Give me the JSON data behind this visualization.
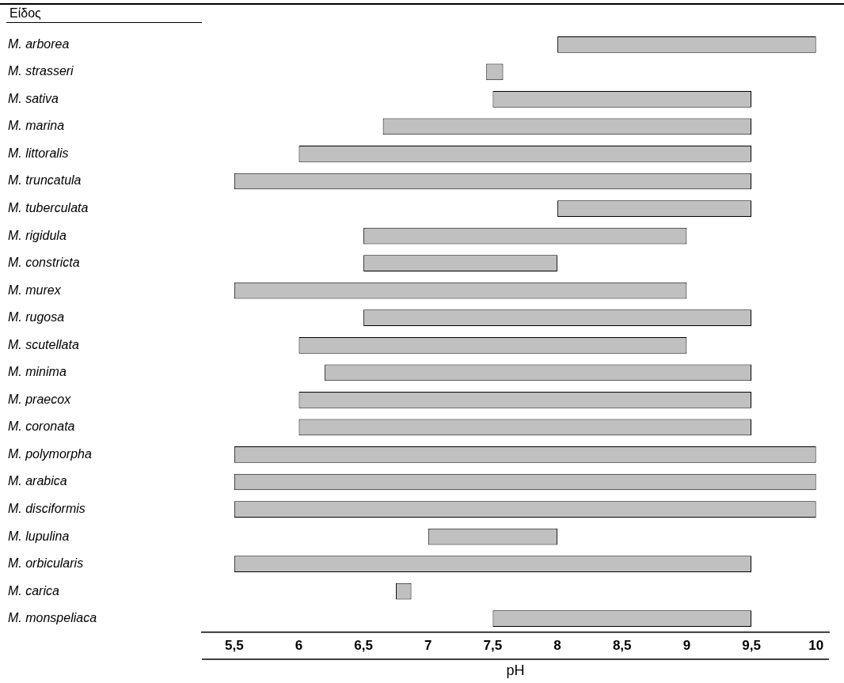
{
  "chart_data": {
    "type": "bar",
    "orientation": "horizontal",
    "xlabel": "pH",
    "ylabel": "Είδος",
    "categories": [
      "M. arborea",
      "M. strasseri",
      "M. sativa",
      "M. marina",
      "M. littoralis",
      "M. truncatula",
      "M. tuberculata",
      "M. rigidula",
      "M. constricta",
      "M. murex",
      "M. rugosa",
      "M. scutellata",
      "M. minima",
      "M. praecox",
      "M. coronata",
      "M. polymorpha",
      "M. arabica",
      "M. disciformis",
      "M. lupulina",
      "M. orbicularis",
      "M. carica",
      "M. monspeliaca"
    ],
    "base": [
      8.0,
      7.45,
      7.5,
      6.65,
      6.0,
      5.5,
      8.0,
      6.5,
      6.5,
      5.5,
      6.5,
      6.0,
      6.2,
      6.0,
      6.0,
      5.5,
      5.5,
      5.5,
      7.0,
      5.5,
      6.75,
      7.5
    ],
    "values": [
      2.0,
      0.13,
      2.0,
      2.85,
      3.5,
      4.0,
      1.5,
      2.5,
      1.5,
      3.5,
      3.0,
      3.0,
      3.3,
      3.5,
      3.5,
      4.5,
      4.5,
      4.5,
      1.0,
      4.0,
      0.12,
      2.0
    ],
    "color": "#c0c0c0",
    "xlim": [
      5.25,
      10.1
    ],
    "xticks": [
      {
        "value": 5.5,
        "label": "5,5"
      },
      6,
      {
        "value": 6.5,
        "label": "6,5"
      },
      7,
      {
        "value": 7.5,
        "label": "7,5"
      },
      8,
      {
        "value": 8.5,
        "label": "8,5"
      },
      9,
      {
        "value": 9.5,
        "label": "9,5"
      },
      10
    ],
    "grid": false,
    "legend": false
  }
}
